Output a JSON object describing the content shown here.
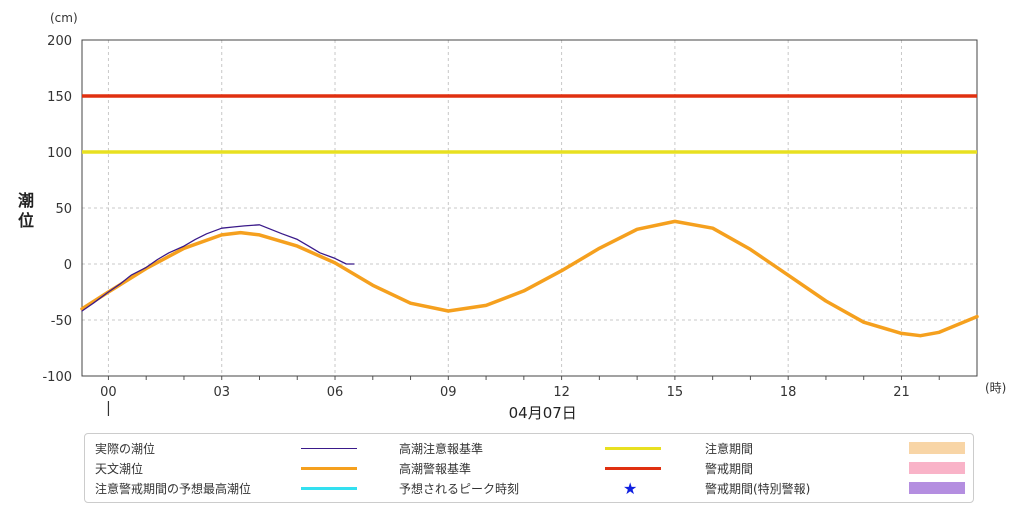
{
  "chart_data": {
    "type": "line",
    "ylabel": "潮位",
    "yunit": "(cm)",
    "xunit": "(時)",
    "date_label": "04月07日",
    "ylim": [
      -100,
      200
    ],
    "xlim": [
      -0.7,
      23
    ],
    "yticks": [
      -100,
      -50,
      0,
      50,
      100,
      150,
      200
    ],
    "xticks": [
      0,
      3,
      6,
      9,
      12,
      15,
      18,
      21
    ],
    "xtick_labels": [
      "00",
      "03",
      "06",
      "09",
      "12",
      "15",
      "18",
      "21"
    ],
    "grid": true,
    "thresholds": [
      {
        "name": "高潮注意報基準",
        "value": 100,
        "color": "#e8e020"
      },
      {
        "name": "高潮警報基準",
        "value": 150,
        "color": "#e03010"
      }
    ],
    "series": [
      {
        "name": "天文潮位",
        "color": "#f5a01e",
        "x": [
          -0.7,
          0,
          1,
          2,
          3,
          3.5,
          4,
          5,
          6,
          7,
          8,
          9,
          10,
          11,
          12,
          13,
          14,
          15,
          16,
          17,
          18,
          19,
          20,
          21,
          21.5,
          22,
          23
        ],
        "y": [
          -40,
          -25,
          -4,
          14,
          26,
          28,
          26,
          16,
          1,
          -19,
          -35,
          -42,
          -37,
          -24,
          -6,
          14,
          31,
          38,
          32,
          13,
          -10,
          -33,
          -52,
          -62,
          -64,
          -61,
          -47
        ]
      },
      {
        "name": "実際の潮位",
        "color": "#3a1a8a",
        "x": [
          -0.7,
          -0.4,
          0,
          0.3,
          0.6,
          1,
          1.3,
          1.6,
          2,
          2.3,
          2.6,
          3,
          3.3,
          3.6,
          4,
          4.3,
          4.6,
          5,
          5.3,
          5.6,
          6,
          6.3,
          6.5
        ],
        "y": [
          -42,
          -35,
          -25,
          -18,
          -10,
          -3,
          4,
          10,
          16,
          22,
          27,
          32,
          33,
          34,
          35,
          31,
          27,
          22,
          16,
          10,
          5,
          0,
          0
        ]
      }
    ]
  },
  "legend": [
    {
      "label": "実際の潮位",
      "type": "thin-line",
      "color": "#3a1a8a"
    },
    {
      "label": "天文潮位",
      "type": "line",
      "color": "#f5a01e"
    },
    {
      "label": "注意警戒期間の予想最高潮位",
      "type": "line",
      "color": "#33e0f0"
    },
    {
      "label": "高潮注意報基準",
      "type": "line",
      "color": "#e8e020"
    },
    {
      "label": "高潮警報基準",
      "type": "line",
      "color": "#e03010"
    },
    {
      "label": "予想されるピーク時刻",
      "type": "star",
      "color": "#1020e0",
      "symbol": "★"
    },
    {
      "label": "注意期間",
      "type": "box",
      "color": "#f8d5a6"
    },
    {
      "label": "警戒期間",
      "type": "box",
      "color": "#f9b3c8"
    },
    {
      "label": "警戒期間(特別警報)",
      "type": "box",
      "color": "#b48ee0"
    }
  ]
}
